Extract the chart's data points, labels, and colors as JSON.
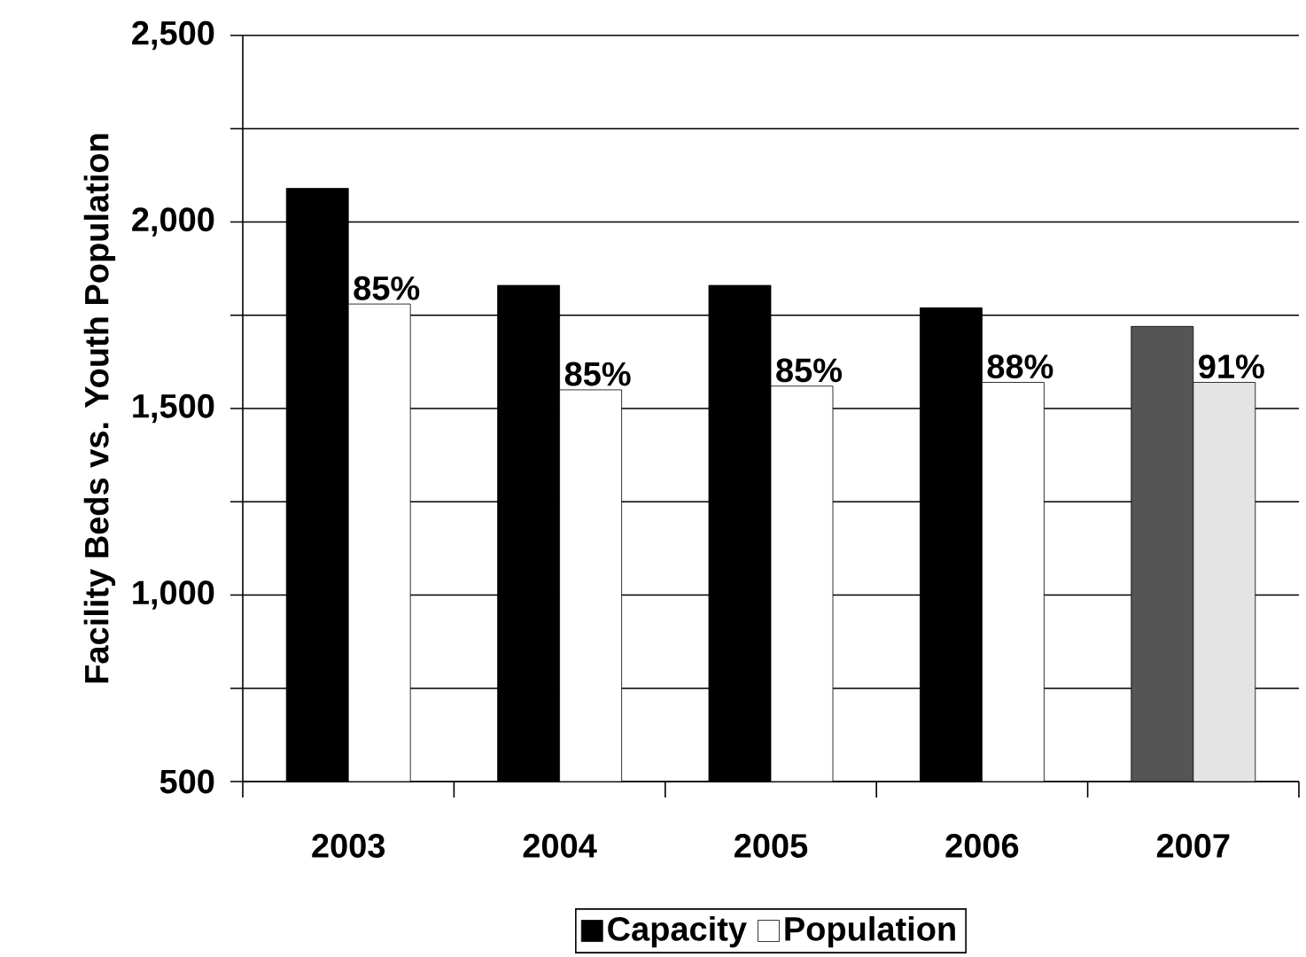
{
  "chart_data": {
    "type": "bar",
    "ylabel": "Facility Beds vs. Youth Population",
    "categories": [
      "2003",
      "2004",
      "2005",
      "2006",
      "2007"
    ],
    "series": [
      {
        "name": "Capacity",
        "color": "#000000",
        "colors": [
          "#000000",
          "#000000",
          "#000000",
          "#000000",
          "#555555"
        ],
        "values": [
          2090,
          1830,
          1830,
          1770,
          1720
        ]
      },
      {
        "name": "Population",
        "color": "#ffffff",
        "colors": [
          "#ffffff",
          "#ffffff",
          "#ffffff",
          "#ffffff",
          "#e4e4e4"
        ],
        "values": [
          1780,
          1550,
          1560,
          1570,
          1570
        ]
      }
    ],
    "annotations": [
      {
        "text": "85%",
        "x": "2003",
        "y": 1780
      },
      {
        "text": "85%",
        "x": "2004",
        "y": 1550
      },
      {
        "text": "85%",
        "x": "2005",
        "y": 1560
      },
      {
        "text": "88%",
        "x": "2006",
        "y": 1570
      },
      {
        "text": "91%",
        "x": "2007",
        "y": 1570
      }
    ],
    "ylim": [
      500,
      2500
    ],
    "yticks": [
      500,
      {
        "value": 750,
        "label": null
      },
      {
        "value": 1000,
        "label": "1,000"
      },
      {
        "value": 1250,
        "label": null
      },
      {
        "value": 1500,
        "label": "1,500"
      },
      {
        "value": 1750,
        "label": null
      },
      {
        "value": 2000,
        "label": "2,000"
      },
      {
        "value": 2250,
        "label": null
      },
      {
        "value": 2500,
        "label": "2,500"
      }
    ],
    "grid": "y",
    "legend": "bottom"
  }
}
